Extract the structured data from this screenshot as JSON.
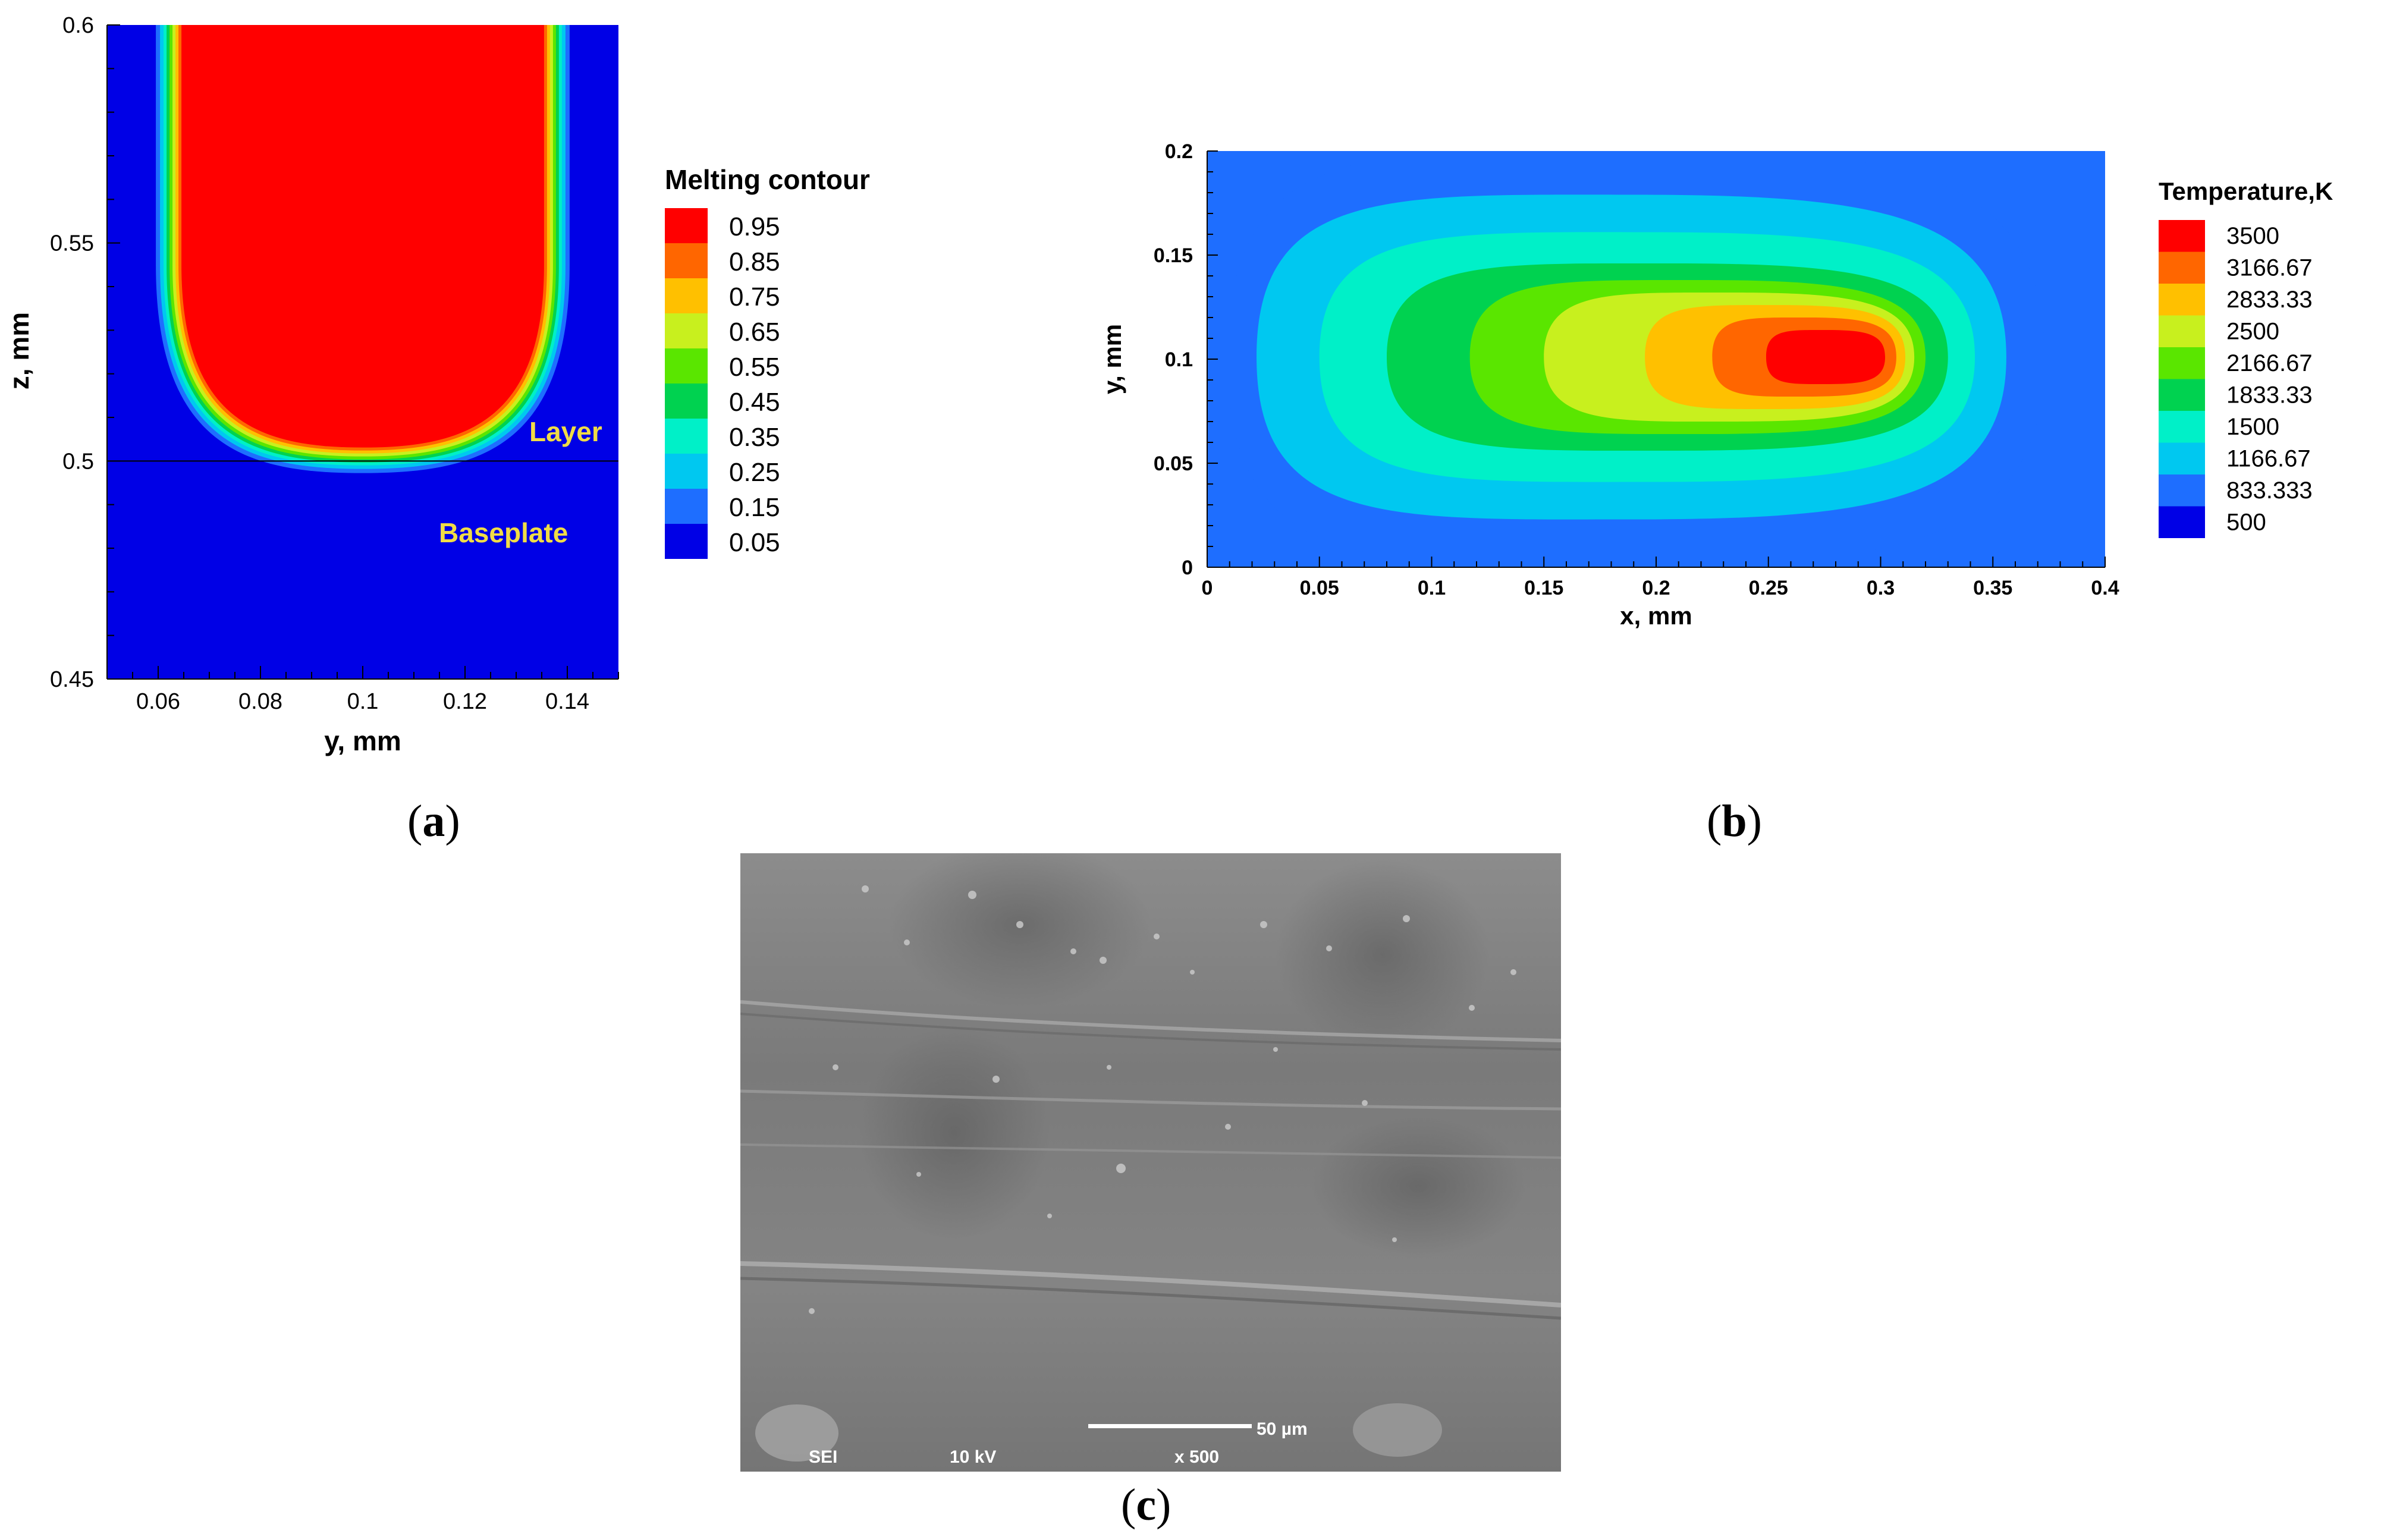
{
  "chart_data": [
    {
      "type": "heatmap",
      "panel": "a",
      "xlabel": "y, mm",
      "ylabel": "z, mm",
      "xlim": [
        0.05,
        0.15
      ],
      "ylim": [
        0.45,
        0.6
      ],
      "xticks": [
        "0.06",
        "0.08",
        "0.1",
        "0.12",
        "0.14"
      ],
      "yticks": [
        "0.45",
        "0.5",
        "0.55",
        "0.6"
      ],
      "legend_title": "Melting contour",
      "legend_levels": [
        "0.95",
        "0.85",
        "0.75",
        "0.65",
        "0.55",
        "0.45",
        "0.35",
        "0.25",
        "0.15",
        "0.05"
      ],
      "annotations": [
        "Layer",
        "Baseplate"
      ],
      "layer_interface_z": 0.5,
      "melt_pool": {
        "y_left_top": 0.059,
        "y_right_top": 0.142,
        "bottom_y": 0.1,
        "bottom_z": 0.496
      }
    },
    {
      "type": "heatmap",
      "panel": "b",
      "xlabel": "x, mm",
      "ylabel": "y, mm",
      "xlim": [
        0,
        0.4
      ],
      "ylim": [
        0,
        0.2
      ],
      "xticks": [
        "0",
        "0.05",
        "0.1",
        "0.15",
        "0.2",
        "0.25",
        "0.3",
        "0.35",
        "0.4"
      ],
      "yticks": [
        "0",
        "0.05",
        "0.1",
        "0.15",
        "0.2"
      ],
      "legend_title": "Temperature,K",
      "legend_levels": [
        "3500",
        "3166.67",
        "2833.33",
        "2500",
        "2166.67",
        "1833.33",
        "1500",
        "1166.67",
        "833.333",
        "500"
      ],
      "hot_spot": {
        "x": 0.282,
        "y": 0.101
      }
    }
  ],
  "colors": {
    "levels": [
      "#ff0000",
      "#ff6600",
      "#ffc000",
      "#c8f01e",
      "#5ae600",
      "#00d250",
      "#00f0c8",
      "#00c8f0",
      "#1e6eff",
      "#0000e6"
    ],
    "contour_background_a": "#0000e6",
    "contour_background_b": "#1e6eff",
    "annotation": "#f0dc46"
  },
  "sem": {
    "detector": "SEI",
    "voltage": "10 kV",
    "magnification": "x 500",
    "scale_bar": "50 µm"
  },
  "captions": {
    "a": {
      "open": "(",
      "letter": "a",
      "close": ")"
    },
    "b": {
      "open": "(",
      "letter": "b",
      "close": ")"
    },
    "c": {
      "open": "(",
      "letter": "c",
      "close": ")"
    }
  }
}
